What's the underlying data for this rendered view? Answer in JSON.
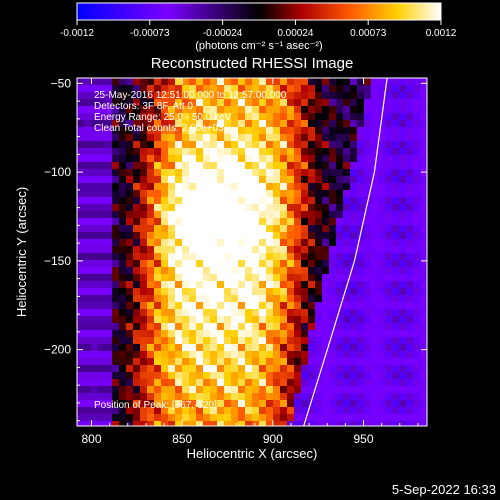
{
  "colorbar": {
    "ticks": [
      "-0.0012",
      "-0.00073",
      "-0.00024",
      "0.00024",
      "0.00073",
      "0.0012"
    ],
    "unit_label": "(photons cm⁻² s⁻¹ asec⁻²)",
    "colors": [
      "#0000ff",
      "#7a00ff",
      "#000000",
      "#b00000",
      "#ff5a00",
      "#ffd000",
      "#ffffff"
    ]
  },
  "chart_data": {
    "type": "heatmap",
    "title": "Reconstructed RHESSI Image",
    "xlabel": "Heliocentric X (arcsec)",
    "ylabel": "Heliocentric Y (arcsec)",
    "xlim": [
      792,
      985
    ],
    "ylim": [
      -243,
      -47
    ],
    "xticks": [
      800,
      850,
      900,
      950
    ],
    "yticks": [
      -50,
      -100,
      -150,
      -200
    ],
    "xtick_labels": [
      "800",
      "850",
      "900",
      "950"
    ],
    "ytick_labels": [
      "−50",
      "−100",
      "−150",
      "−200"
    ],
    "annotations": [
      "25-May-2016 12:51:00.000 to 12:57:00.000",
      "Detectors: 3F 8F, Att 0",
      "Energy Range: 25.0 - 50.0 keV",
      "Clean     Total counts: 2.80e+03"
    ],
    "peak_label": "Position of Peak: [867,-120]",
    "limb_points": [
      [
        917,
        -243
      ],
      [
        930,
        -200
      ],
      [
        945,
        -150
      ],
      [
        956,
        -100
      ],
      [
        963,
        -47
      ]
    ]
  },
  "footer": {
    "date": "5-Sep-2022 16:33"
  }
}
